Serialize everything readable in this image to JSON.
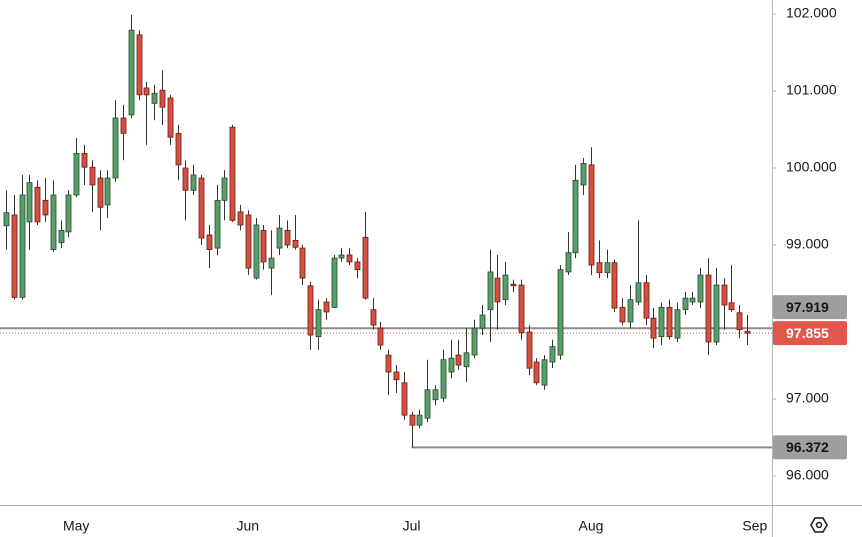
{
  "chart_data": {
    "type": "candlestick",
    "categories": [
      null,
      null,
      null,
      null,
      null,
      null,
      null,
      null,
      null,
      "May",
      null,
      null,
      null,
      null,
      null,
      null,
      null,
      null,
      null,
      null,
      null,
      null,
      null,
      null,
      null,
      null,
      null,
      null,
      null,
      null,
      null,
      "Jun",
      null,
      null,
      null,
      null,
      null,
      null,
      null,
      null,
      null,
      null,
      null,
      null,
      null,
      null,
      null,
      null,
      null,
      null,
      null,
      null,
      "Jul",
      null,
      null,
      null,
      null,
      null,
      null,
      null,
      null,
      null,
      null,
      null,
      null,
      null,
      null,
      null,
      null,
      null,
      null,
      null,
      null,
      null,
      null,
      "Aug",
      null,
      null,
      null,
      null,
      null,
      null,
      null,
      null,
      null,
      null,
      null,
      null,
      null,
      null,
      null,
      null,
      null,
      null,
      null,
      null,
      "Sep"
    ],
    "open": [
      99.25,
      99.39,
      98.32,
      99.3,
      99.75,
      99.58,
      98.94,
      99.03,
      99.17,
      99.65,
      100.19,
      100.01,
      99.87,
      99.52,
      99.87,
      100.65,
      100.69,
      101.73,
      101.04,
      100.84,
      101.01,
      100.91,
      100.45,
      100.0,
      99.71,
      99.87,
      99.13,
      98.96,
      99.58,
      100.53,
      99.43,
      99.39,
      98.57,
      99.19,
      98.7,
      98.96,
      99.19,
      99.06,
      98.96,
      98.47,
      97.81,
      98.26,
      98.19,
      98.83,
      98.87,
      98.78,
      99.1,
      98.16,
      97.92,
      97.57,
      97.35,
      97.21,
      96.79,
      96.66,
      96.75,
      96.99,
      97.01,
      97.35,
      97.57,
      97.42,
      97.57,
      97.92,
      98.16,
      98.57,
      98.29,
      98.49,
      98.48,
      97.87,
      97.48,
      97.18,
      97.48,
      97.57,
      98.65,
      98.9,
      99.78,
      100.04,
      98.77,
      98.64,
      98.77,
      98.19,
      98.0,
      98.26,
      98.51,
      98.05,
      97.81,
      98.19,
      97.79,
      98.16,
      98.26,
      98.26,
      98.61,
      97.74,
      98.48,
      98.25,
      98.12,
      97.88,
      null
    ],
    "high": [
      99.71,
      99.65,
      99.91,
      99.91,
      99.84,
      99.87,
      99.84,
      99.32,
      99.71,
      100.39,
      100.3,
      100.1,
      99.97,
      99.97,
      100.88,
      100.82,
      101.99,
      101.79,
      101.12,
      101.08,
      101.27,
      100.95,
      100.56,
      100.1,
      100.04,
      99.91,
      99.26,
      99.78,
      99.97,
      100.56,
      99.52,
      99.45,
      99.35,
      99.26,
      99.19,
      99.39,
      99.32,
      99.39,
      99.0,
      98.52,
      98.29,
      98.31,
      98.87,
      98.96,
      98.96,
      98.83,
      99.43,
      98.31,
      98.0,
      97.64,
      97.44,
      97.35,
      96.83,
      96.86,
      97.51,
      97.18,
      97.64,
      97.77,
      97.77,
      97.92,
      98.03,
      98.22,
      98.94,
      98.87,
      98.78,
      98.55,
      98.55,
      97.96,
      97.53,
      97.57,
      97.77,
      98.74,
      99.17,
      100.04,
      100.13,
      100.27,
      99.06,
      98.94,
      98.81,
      98.31,
      98.48,
      99.32,
      98.61,
      98.18,
      98.25,
      98.29,
      98.25,
      98.39,
      98.39,
      98.7,
      98.83,
      98.7,
      98.57,
      98.74,
      98.22,
      98.09,
      null
    ],
    "low": [
      98.94,
      98.29,
      98.29,
      98.94,
      99.26,
      99.3,
      98.91,
      98.96,
      99.1,
      99.62,
      99.78,
      99.43,
      99.19,
      99.35,
      99.82,
      100.1,
      100.65,
      100.88,
      100.3,
      100.62,
      100.56,
      100.3,
      99.84,
      99.32,
      99.65,
      99.0,
      98.7,
      98.87,
      99.32,
      99.3,
      99.19,
      98.61,
      98.55,
      98.68,
      98.35,
      98.87,
      98.96,
      98.94,
      98.48,
      97.64,
      97.64,
      98.03,
      98.18,
      98.78,
      98.74,
      98.57,
      98.29,
      97.9,
      97.64,
      97.05,
      97.08,
      96.73,
      96.372,
      96.62,
      96.7,
      96.92,
      96.96,
      97.27,
      97.38,
      97.22,
      97.53,
      97.83,
      97.74,
      97.9,
      98.22,
      98.39,
      97.77,
      97.31,
      97.18,
      97.12,
      97.4,
      97.51,
      98.61,
      98.83,
      99.65,
      98.61,
      98.57,
      98.57,
      98.13,
      97.96,
      97.92,
      98.22,
      97.96,
      97.66,
      97.7,
      97.77,
      97.74,
      98.09,
      98.22,
      98.18,
      97.57,
      97.7,
      97.9,
      98.13,
      97.79,
      97.7,
      null
    ],
    "close": [
      99.42,
      98.32,
      99.65,
      99.81,
      99.3,
      99.39,
      99.65,
      99.19,
      99.65,
      100.19,
      100.01,
      99.78,
      99.49,
      99.87,
      100.65,
      100.45,
      101.79,
      100.95,
      100.95,
      100.97,
      100.79,
      100.4,
      100.04,
      99.71,
      99.91,
      99.09,
      98.94,
      99.58,
      99.87,
      99.32,
      99.26,
      98.7,
      99.26,
      98.78,
      98.83,
      99.22,
      99.0,
      98.97,
      98.57,
      97.83,
      98.16,
      98.13,
      98.83,
      98.87,
      98.78,
      98.68,
      98.31,
      97.96,
      97.7,
      97.35,
      97.25,
      96.79,
      96.66,
      96.79,
      97.12,
      97.12,
      97.51,
      97.53,
      97.44,
      97.6,
      97.92,
      98.09,
      98.65,
      98.26,
      98.61,
      98.47,
      97.86,
      97.4,
      97.21,
      97.51,
      97.68,
      98.68,
      98.9,
      99.84,
      100.06,
      98.74,
      98.64,
      98.77,
      98.18,
      98.0,
      98.29,
      98.51,
      98.05,
      97.79,
      98.19,
      97.81,
      98.16,
      98.31,
      98.31,
      98.61,
      97.74,
      98.48,
      98.22,
      98.16,
      97.9,
      97.855,
      null
    ],
    "up_color": "#5b9e6c",
    "down_color": "#d4503f",
    "ylim": [
      95.623,
      102.182
    ],
    "yticks": [
      {
        "value": 96,
        "label": "96.000"
      },
      {
        "value": 97,
        "label": "97.000"
      },
      {
        "value": 99,
        "label": "99.000"
      },
      {
        "value": 100,
        "label": "100.000"
      },
      {
        "value": 101,
        "label": "101.000"
      },
      {
        "value": 102,
        "label": "102.000"
      }
    ],
    "levels": [
      {
        "value": 97.919,
        "color": "#8c8c8c",
        "style": "solid"
      },
      {
        "value": 97.855,
        "color": "#e0584b",
        "style": "dotted"
      },
      {
        "value": 96.372,
        "color": "#8c8c8c",
        "style": "solid"
      }
    ]
  }
}
